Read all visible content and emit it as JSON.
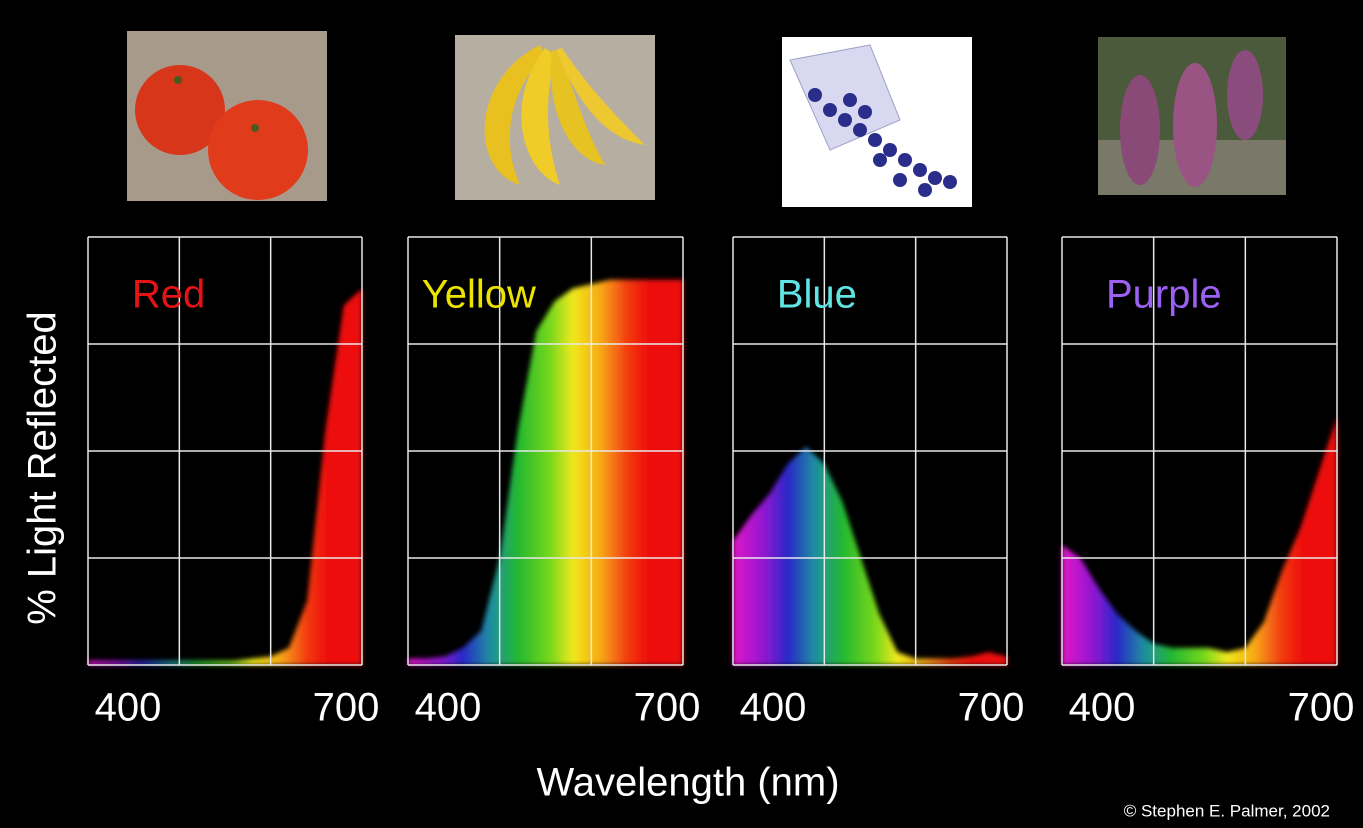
{
  "figure": {
    "ylabel": "% Light Reflected",
    "xlabel": "Wavelength (nm)",
    "credit": "© Stephen E. Palmer, 2002"
  },
  "chart_data": [
    {
      "type": "area",
      "title": "Red",
      "title_color": "#e41414",
      "x": [
        400,
        420,
        440,
        460,
        480,
        500,
        520,
        540,
        560,
        580,
        600,
        620,
        640,
        660,
        680,
        700
      ],
      "values": [
        1,
        1,
        1,
        1,
        1,
        1,
        1,
        1,
        1,
        1.5,
        2,
        4,
        15,
        55,
        84,
        88
      ],
      "xlim": [
        400,
        700
      ],
      "ylim": [
        0,
        100
      ],
      "xticks": [
        400,
        700
      ],
      "xgrid": [
        400,
        500,
        600,
        700
      ],
      "ygrid": [
        0,
        25,
        50,
        75,
        100
      ]
    },
    {
      "type": "area",
      "title": "Yellow",
      "title_color": "#ece400",
      "x": [
        400,
        420,
        440,
        460,
        480,
        500,
        520,
        540,
        560,
        580,
        600,
        620,
        640,
        660,
        680,
        700
      ],
      "values": [
        1.5,
        1.5,
        2,
        4,
        8,
        25,
        55,
        78,
        85,
        88,
        89,
        90,
        90,
        90,
        90,
        90
      ],
      "xlim": [
        400,
        700
      ],
      "ylim": [
        0,
        100
      ],
      "xticks": [
        400,
        700
      ],
      "xgrid": [
        400,
        500,
        600,
        700
      ],
      "ygrid": [
        0,
        25,
        50,
        75,
        100
      ]
    },
    {
      "type": "area",
      "title": "Blue",
      "title_color": "#60e4e4",
      "x": [
        400,
        420,
        440,
        460,
        480,
        500,
        520,
        540,
        560,
        580,
        600,
        620,
        640,
        660,
        680,
        700
      ],
      "values": [
        29,
        35,
        40,
        47,
        51,
        47,
        38,
        25,
        12,
        3,
        1.5,
        1.5,
        1.5,
        2,
        3,
        2
      ],
      "xlim": [
        400,
        700
      ],
      "ylim": [
        0,
        100
      ],
      "xticks": [
        400,
        700
      ],
      "xgrid": [
        400,
        500,
        600,
        700
      ],
      "ygrid": [
        0,
        25,
        50,
        75,
        100
      ]
    },
    {
      "type": "area",
      "title": "Purple",
      "title_color": "#9c60f2",
      "x": [
        400,
        420,
        440,
        460,
        480,
        500,
        520,
        540,
        560,
        580,
        600,
        620,
        640,
        660,
        680,
        700
      ],
      "values": [
        28,
        25,
        18,
        12,
        8,
        5,
        4,
        4,
        4,
        3,
        4,
        10,
        22,
        32,
        45,
        58
      ],
      "xlim": [
        400,
        700
      ],
      "ylim": [
        0,
        100
      ],
      "xticks": [
        400,
        700
      ],
      "xgrid": [
        400,
        500,
        600,
        700
      ],
      "ygrid": [
        0,
        25,
        50,
        75,
        100
      ]
    }
  ]
}
